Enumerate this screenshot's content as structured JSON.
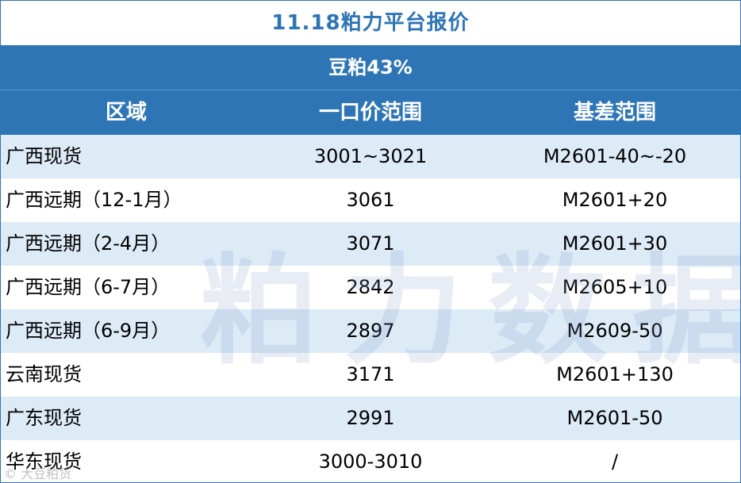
{
  "title": "11.18粕力平台报价",
  "product": "豆粕43%",
  "headers": [
    "区域",
    "一口价范围",
    "基差范围"
  ],
  "rows": [
    {
      "region": "广西现货",
      "price": "3001~3021",
      "basis": "M2601-40~-20"
    },
    {
      "region": "广西远期（12-1月）",
      "price": "3061",
      "basis": "M2601+20"
    },
    {
      "region": "广西远期（2-4月）",
      "price": "3071",
      "basis": "M2601+30"
    },
    {
      "region": "广西远期（6-7月）",
      "price": "2842",
      "basis": "M2605+10"
    },
    {
      "region": "广西远期（6-9月）",
      "price": "2897",
      "basis": "M2609-50"
    },
    {
      "region": "云南现货",
      "price": "3171",
      "basis": "M2601+130"
    },
    {
      "region": "广东现货",
      "price": "2991",
      "basis": "M2601-50"
    },
    {
      "region": "华东现货",
      "price": "3000-3010",
      "basis": "/"
    }
  ],
  "watermark": "粕力数据",
  "source_mark": "© 大豆粕货"
}
